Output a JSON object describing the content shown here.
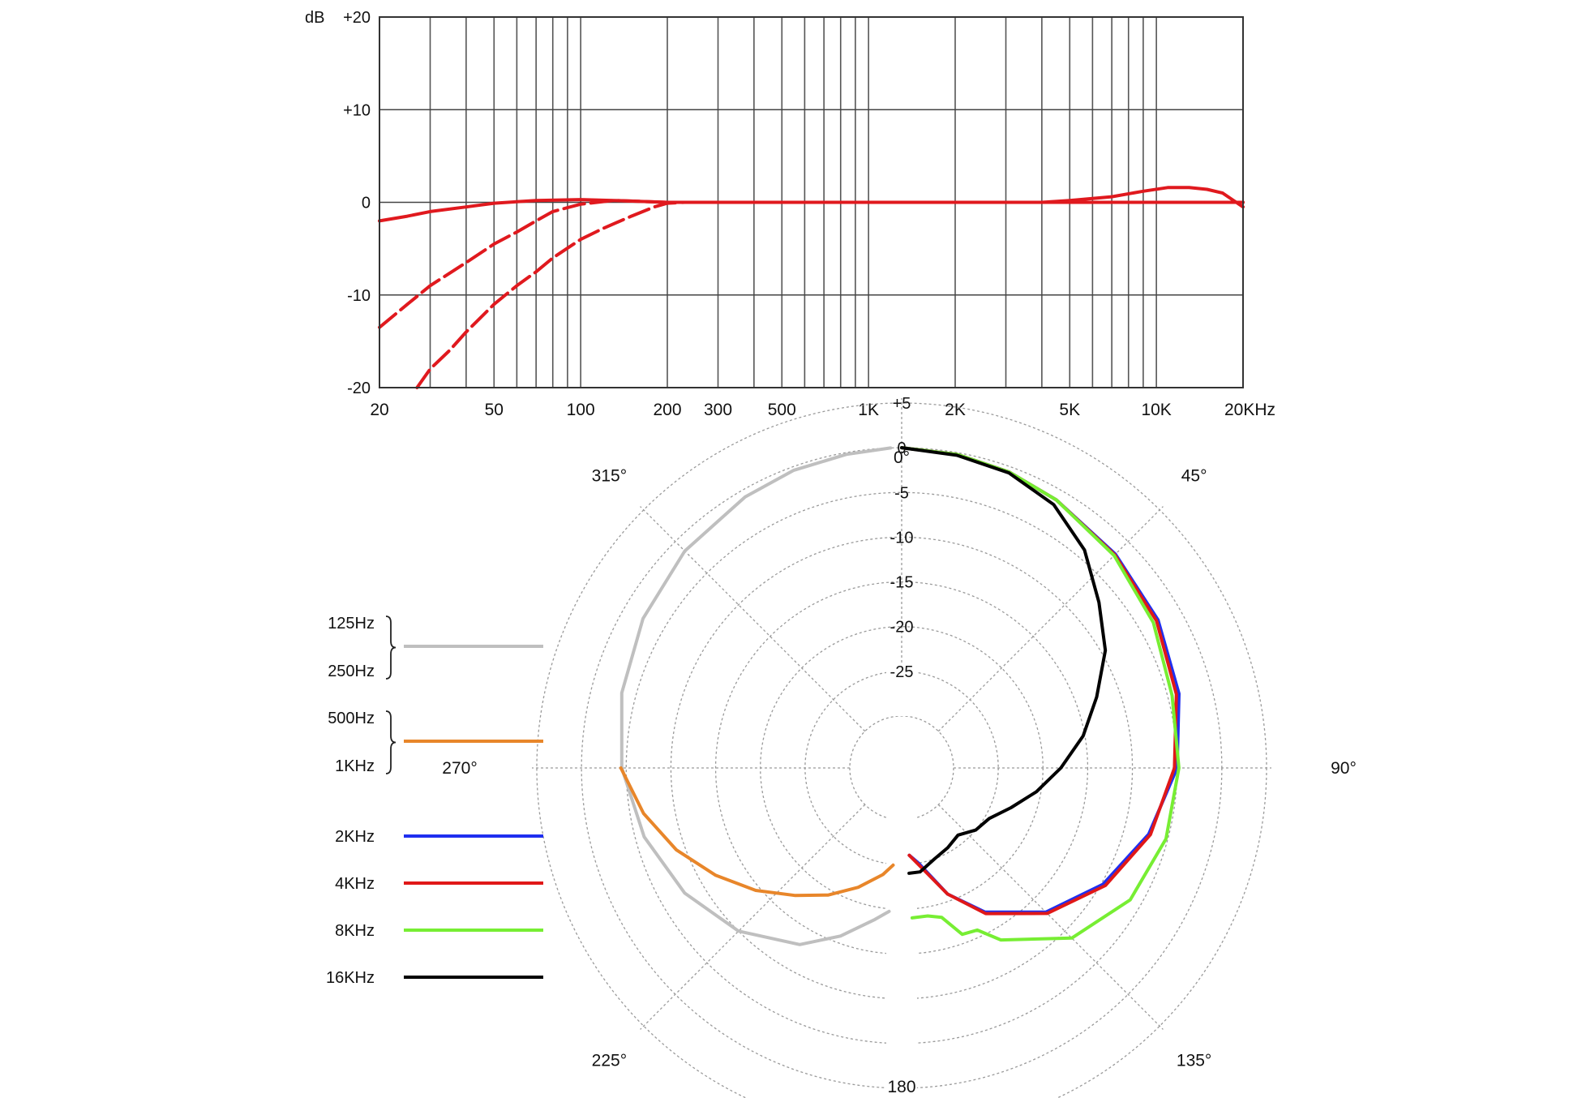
{
  "chart_data": [
    {
      "type": "line",
      "x_scale": "log",
      "xlim": [
        20,
        20000
      ],
      "ylim": [
        -20,
        20
      ],
      "ylabel": "dB",
      "grid": true,
      "y_ticks": [
        {
          "value": 20,
          "label": "+20"
        },
        {
          "value": 10,
          "label": "+10"
        },
        {
          "value": 0,
          "label": "0"
        },
        {
          "value": -10,
          "label": "-10"
        },
        {
          "value": -20,
          "label": "-20"
        }
      ],
      "x_ticks": [
        {
          "value": 20,
          "label": "20"
        },
        {
          "value": 50,
          "label": "50"
        },
        {
          "value": 100,
          "label": "100"
        },
        {
          "value": 200,
          "label": "200"
        },
        {
          "value": 300,
          "label": "300"
        },
        {
          "value": 500,
          "label": "500"
        },
        {
          "value": 1000,
          "label": "1K"
        },
        {
          "value": 2000,
          "label": "2K"
        },
        {
          "value": 5000,
          "label": "5K"
        },
        {
          "value": 10000,
          "label": "10K"
        },
        {
          "value": 20000,
          "label": "20KHz"
        }
      ],
      "color": "#e0191e",
      "series": [
        {
          "style": "solid",
          "points": [
            [
              20,
              -2
            ],
            [
              25,
              -1.5
            ],
            [
              30,
              -1
            ],
            [
              40,
              -0.5
            ],
            [
              50,
              -0.1
            ],
            [
              70,
              0.2
            ],
            [
              100,
              0.3
            ],
            [
              130,
              0.2
            ],
            [
              200,
              0
            ],
            [
              1000,
              0
            ],
            [
              3000,
              0
            ],
            [
              4000,
              0
            ],
            [
              5000,
              0.2
            ],
            [
              7000,
              0.6
            ],
            [
              9000,
              1.2
            ],
            [
              11000,
              1.6
            ],
            [
              13000,
              1.6
            ],
            [
              15000,
              1.4
            ],
            [
              17000,
              1
            ],
            [
              20000,
              -0.5
            ]
          ]
        },
        {
          "style": "dashed",
          "points": [
            [
              20,
              -13.5
            ],
            [
              25,
              -11
            ],
            [
              30,
              -9
            ],
            [
              40,
              -6.5
            ],
            [
              50,
              -4.5
            ],
            [
              60,
              -3.2
            ],
            [
              70,
              -2
            ],
            [
              80,
              -1
            ],
            [
              100,
              -0.2
            ],
            [
              130,
              0.2
            ],
            [
              200,
              0
            ],
            [
              20000,
              0
            ]
          ]
        },
        {
          "style": "dashed",
          "points": [
            [
              27,
              -20
            ],
            [
              30,
              -18
            ],
            [
              35,
              -16
            ],
            [
              40,
              -14
            ],
            [
              50,
              -11
            ],
            [
              60,
              -9
            ],
            [
              70,
              -7.5
            ],
            [
              80,
              -6
            ],
            [
              100,
              -4
            ],
            [
              120,
              -2.8
            ],
            [
              150,
              -1.5
            ],
            [
              180,
              -0.5
            ],
            [
              200,
              -0.1
            ],
            [
              230,
              0
            ],
            [
              20000,
              0
            ]
          ]
        }
      ]
    },
    {
      "type": "polar",
      "angle_labels": [
        {
          "angle": 0,
          "label": "0°"
        },
        {
          "angle": 45,
          "label": "45°"
        },
        {
          "angle": 90,
          "label": "90°"
        },
        {
          "angle": 135,
          "label": "135°"
        },
        {
          "angle": 180,
          "label": "180"
        },
        {
          "angle": 225,
          "label": "225°"
        },
        {
          "angle": 270,
          "label": "270°"
        },
        {
          "angle": 315,
          "label": "315°"
        }
      ],
      "ring_labels": [
        "+5",
        "0",
        "-5",
        "-10",
        "-15",
        "-20",
        "-25"
      ],
      "rlim": [
        -30,
        5
      ],
      "legend": [
        {
          "brace_labels": [
            "125Hz",
            "250Hz"
          ],
          "color": "#bfbfbf"
        },
        {
          "brace_labels": [
            "500Hz",
            "1KHz"
          ],
          "color": "#e8862a"
        },
        {
          "label": "2KHz",
          "color": "#1f2ff0"
        },
        {
          "label": "4KHz",
          "color": "#e01818"
        },
        {
          "label": "8KHz",
          "color": "#77ee33"
        },
        {
          "label": "16KHz",
          "color": "#000000"
        }
      ],
      "series": [
        {
          "name": "125Hz / 250Hz",
          "color": "#bfbfbf",
          "points": [
            [
              -2,
              0
            ],
            [
              -10,
              -0.2
            ],
            [
              -20,
              -0.4
            ],
            [
              -30,
              -0.8
            ],
            [
              -45,
              -1.5
            ],
            [
              -60,
              -2.4
            ],
            [
              -75,
              -3.4
            ],
            [
              -90,
              -4.5
            ],
            [
              -105,
              -6
            ],
            [
              -120,
              -7.8
            ],
            [
              -135,
              -10
            ],
            [
              -150,
              -13
            ],
            [
              -160,
              -15.8
            ],
            [
              -170,
              -18.6
            ],
            [
              -175,
              -19.7
            ]
          ]
        },
        {
          "name": "500Hz / 1KHz",
          "color": "#e8862a",
          "points": [
            [
              -90,
              -4.4
            ],
            [
              -100,
              -6.5
            ],
            [
              -110,
              -9
            ],
            [
              -120,
              -11.8
            ],
            [
              -130,
              -14.5
            ],
            [
              -140,
              -17.2
            ],
            [
              -150,
              -19.4
            ],
            [
              -160,
              -21.6
            ],
            [
              -170,
              -23.7
            ],
            [
              -175,
              -24.9
            ]
          ]
        },
        {
          "name": "2KHz",
          "color": "#1f2ff0",
          "points": [
            [
              0,
              0
            ],
            [
              10,
              -0.2
            ],
            [
              20,
              -0.6
            ],
            [
              30,
              -1.2
            ],
            [
              45,
              -2
            ],
            [
              60,
              -2.7
            ],
            [
              75,
              -3.7
            ],
            [
              90,
              -5
            ],
            [
              105,
              -7.2
            ],
            [
              120,
              -9.8
            ],
            [
              135,
              -13
            ],
            [
              150,
              -17.2
            ],
            [
              160,
              -20.8
            ],
            [
              170,
              -25
            ],
            [
              175,
              -26
            ]
          ]
        },
        {
          "name": "4KHz",
          "color": "#e01818",
          "points": [
            [
              0,
              0
            ],
            [
              10,
              -0.2
            ],
            [
              20,
              -0.6
            ],
            [
              30,
              -1.2
            ],
            [
              45,
              -2.1
            ],
            [
              60,
              -2.9
            ],
            [
              75,
              -4
            ],
            [
              90,
              -5.3
            ],
            [
              105,
              -7
            ],
            [
              120,
              -9.5
            ],
            [
              135,
              -12.8
            ],
            [
              150,
              -17
            ],
            [
              160,
              -20.8
            ],
            [
              170,
              -24.8
            ],
            [
              175,
              -26
            ]
          ]
        },
        {
          "name": "8KHz",
          "color": "#77ee33",
          "points": [
            [
              0,
              0
            ],
            [
              10,
              -0.2
            ],
            [
              20,
              -0.6
            ],
            [
              30,
              -1.2
            ],
            [
              45,
              -2.2
            ],
            [
              60,
              -3.3
            ],
            [
              75,
              -4.5
            ],
            [
              90,
              -4.8
            ],
            [
              105,
              -5.2
            ],
            [
              120,
              -6.3
            ],
            [
              135,
              -8.9
            ],
            [
              150,
              -13.6
            ],
            [
              155,
              -15.8
            ],
            [
              160,
              -16
            ],
            [
              165,
              -18.5
            ],
            [
              170,
              -19
            ],
            [
              176,
              -19
            ]
          ]
        },
        {
          "name": "16KHz",
          "color": "#000000",
          "points": [
            [
              0,
              0
            ],
            [
              10,
              -0.3
            ],
            [
              20,
              -0.7
            ],
            [
              30,
              -1.8
            ],
            [
              40,
              -4
            ],
            [
              50,
              -7
            ],
            [
              60,
              -9.5
            ],
            [
              70,
              -12.6
            ],
            [
              80,
              -15.2
            ],
            [
              90,
              -18
            ],
            [
              100,
              -20.5
            ],
            [
              110,
              -22.8
            ],
            [
              120,
              -24.5
            ],
            [
              130,
              -25
            ],
            [
              140,
              -26
            ],
            [
              150,
              -25.5
            ],
            [
              160,
              -25
            ],
            [
              170,
              -24
            ],
            [
              176,
              -24
            ]
          ]
        }
      ]
    }
  ]
}
